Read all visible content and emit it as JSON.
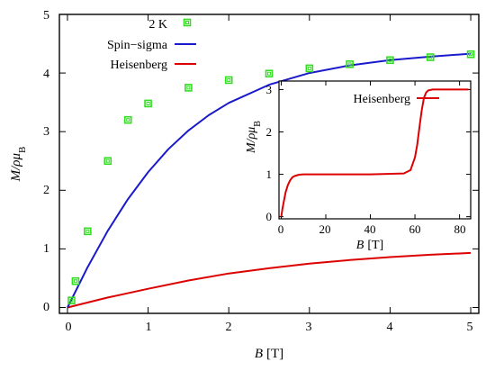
{
  "chart_data": [
    {
      "type": "scatter",
      "xlabel_var": "B",
      "xlabel_unit": "[T]",
      "ylabel": "M/ρμ",
      "ylabel_sub": "B",
      "xlim": [
        -0.1,
        5.1
      ],
      "ylim": [
        -0.1,
        5
      ],
      "xticks": [
        "0",
        "1",
        "2",
        "3",
        "4",
        "5"
      ],
      "yticks": [
        "0",
        "1",
        "2",
        "3",
        "4",
        "5"
      ],
      "legend_position": "top-left",
      "series": [
        {
          "name": "2 K",
          "kind": "markers",
          "marker": "open-square",
          "color": "#33dd22",
          "x": [
            0.05,
            0.1,
            0.25,
            0.5,
            0.75,
            1.0,
            1.5,
            2.0,
            2.5,
            3.0,
            3.5,
            4.0,
            4.5,
            5.0
          ],
          "y": [
            0.12,
            0.45,
            1.3,
            2.5,
            3.2,
            3.48,
            3.75,
            3.88,
            3.99,
            4.08,
            4.15,
            4.22,
            4.27,
            4.32
          ]
        },
        {
          "name": "Spin−sigma",
          "kind": "line",
          "color": "#1a1acc",
          "x": [
            0,
            0.25,
            0.5,
            0.75,
            1.0,
            1.25,
            1.5,
            1.75,
            2.0,
            2.5,
            3.0,
            3.5,
            4.0,
            4.5,
            5.0
          ],
          "y": [
            0,
            0.69,
            1.31,
            1.85,
            2.31,
            2.7,
            3.02,
            3.28,
            3.49,
            3.8,
            4.0,
            4.13,
            4.22,
            4.28,
            4.33
          ]
        },
        {
          "name": "Heisenberg",
          "kind": "line",
          "color": "#dd0000",
          "x": [
            0,
            0.5,
            1.0,
            1.5,
            2.0,
            2.5,
            3.0,
            3.5,
            4.0,
            4.5,
            5.0
          ],
          "y": [
            0,
            0.17,
            0.32,
            0.46,
            0.58,
            0.67,
            0.75,
            0.81,
            0.86,
            0.9,
            0.93
          ]
        }
      ]
    },
    {
      "type": "line",
      "xlabel_var": "B",
      "xlabel_unit": "[T]",
      "ylabel": "M/ρμ",
      "ylabel_sub": "B",
      "xlim": [
        -1,
        85
      ],
      "ylim": [
        -0.05,
        3.2
      ],
      "xticks": [
        "0",
        "20",
        "40",
        "60",
        "80"
      ],
      "yticks": [
        "0",
        "1",
        "2",
        "3"
      ],
      "legend_position": "top-left",
      "series": [
        {
          "name": "Heisenberg",
          "color": "#dd0000",
          "x": [
            0,
            0.5,
            1,
            2,
            3,
            4,
            5,
            6,
            8,
            10,
            20,
            40,
            55,
            58,
            60,
            61,
            62,
            63,
            64,
            65,
            66,
            68,
            70,
            80,
            84
          ],
          "y": [
            0,
            0.17,
            0.32,
            0.58,
            0.75,
            0.86,
            0.93,
            0.96,
            0.99,
            1.0,
            1.0,
            1.0,
            1.02,
            1.1,
            1.4,
            1.7,
            2.1,
            2.5,
            2.8,
            2.93,
            2.98,
            3.0,
            3.0,
            3.0,
            3.0
          ]
        }
      ]
    }
  ]
}
